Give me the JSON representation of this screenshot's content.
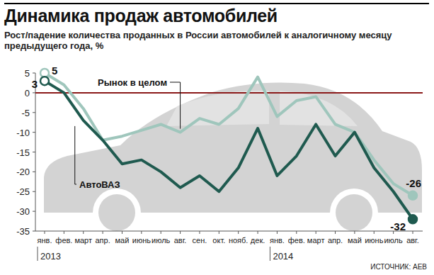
{
  "chart_data": {
    "type": "line",
    "title": "Динамика продаж автомобилей",
    "subtitle": "Рост/падение количества проданных в России автомобилей к аналогичному месяцу предыдущего года, %",
    "source": "ИСТОЧНИК: АЕВ",
    "categories": [
      "янв.",
      "фев.",
      "март",
      "апр.",
      "май",
      "июнь",
      "июль",
      "авг.",
      "сен.",
      "окт.",
      "нояб.",
      "дек.",
      "янв.",
      "фев.",
      "март",
      "апр.",
      "май",
      "июнь",
      "июль",
      "авг."
    ],
    "x_groups": [
      {
        "label": "2013",
        "index": 0
      },
      {
        "label": "2014",
        "index": 12
      }
    ],
    "series": [
      {
        "name": "Рынок в целом",
        "color": "#9fc6bc",
        "marker": "endpoints",
        "values": [
          5,
          2,
          -4,
          -12,
          -11,
          -9.5,
          -8,
          -10,
          -6.5,
          -8,
          -4,
          4,
          -6,
          -2,
          -1,
          -8,
          -10,
          -17,
          -23,
          -26
        ],
        "value_labels": [
          "5",
          null,
          null,
          null,
          null,
          null,
          null,
          null,
          null,
          null,
          null,
          null,
          null,
          null,
          null,
          null,
          null,
          null,
          null,
          "-26"
        ]
      },
      {
        "name": "АвтоВАЗ",
        "color": "#1f5a4f",
        "marker": "endpoints",
        "values": [
          3,
          0,
          -7,
          -12,
          -18,
          -17,
          -20,
          -24,
          -21,
          -25,
          -19,
          -9,
          -21,
          -16,
          -8,
          -16,
          -10,
          -19,
          -25,
          -32
        ],
        "value_labels": [
          "3",
          null,
          null,
          null,
          null,
          null,
          null,
          null,
          null,
          null,
          null,
          null,
          null,
          null,
          null,
          null,
          null,
          null,
          null,
          "-32"
        ]
      }
    ],
    "ylim": [
      -35,
      5
    ],
    "yticks": [
      5,
      0,
      -5,
      -10,
      -15,
      -20,
      -25,
      -30,
      -35
    ],
    "grid": false,
    "data_labels": true
  }
}
